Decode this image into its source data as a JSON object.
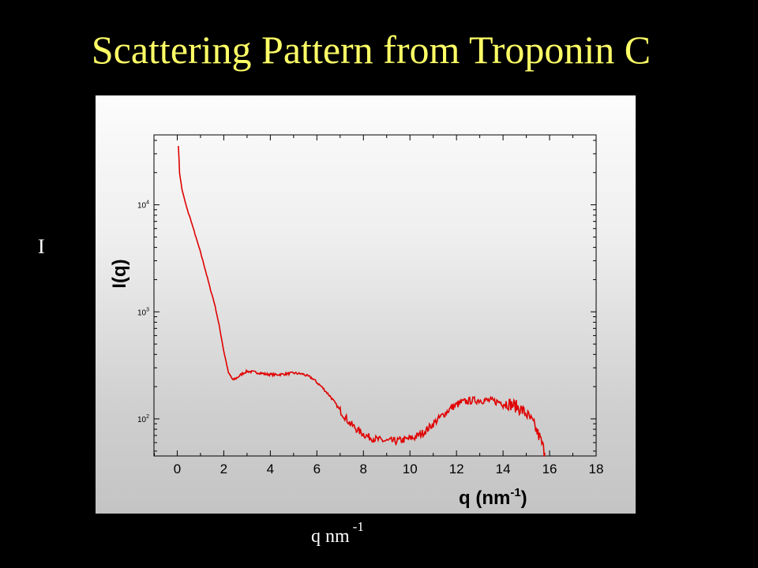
{
  "slide": {
    "title": "Scattering Pattern from Troponin C",
    "side_label": "I",
    "bottom_label_base": "q nm",
    "bottom_label_sup": "-1"
  },
  "colors": {
    "background": "#000000",
    "title": "#ffff66",
    "curve": "#e00000"
  },
  "chart_data": {
    "type": "line",
    "ylabel": "I(q)",
    "xlabel_base": "q (nm",
    "xlabel_sup": "-1",
    "xlabel_close": ")",
    "xlim": [
      -1,
      18
    ],
    "ylim": [
      45,
      45000
    ],
    "yscale": "log",
    "grid": false,
    "x_ticks": [
      "0",
      "2",
      "4",
      "6",
      "8",
      "10",
      "12",
      "14",
      "16",
      "18"
    ],
    "y_ticks": [
      {
        "base": "10",
        "exp": "2",
        "value": 100
      },
      {
        "base": "10",
        "exp": "3",
        "value": 1000
      },
      {
        "base": "10",
        "exp": "4",
        "value": 10000
      }
    ],
    "series": [
      {
        "x": [
          0.05,
          0.1,
          0.2,
          0.3,
          0.4,
          0.6,
          0.8,
          1.0,
          1.2,
          1.4,
          1.6,
          1.8,
          2.0,
          2.2,
          2.4,
          2.6,
          2.8,
          3.0,
          3.2,
          3.5,
          3.8,
          4.2,
          4.6,
          5.0,
          5.4,
          5.8,
          6.2,
          6.6,
          7.0,
          7.4,
          7.8,
          8.2,
          8.6,
          9.0,
          9.4,
          9.8,
          10.2,
          10.6,
          11.0,
          11.4,
          11.8,
          12.2,
          12.6,
          13.0,
          13.4,
          13.8,
          14.2,
          14.6,
          15.0,
          15.3,
          15.6,
          15.8
        ],
        "y": [
          36000,
          20000,
          14000,
          11500,
          9500,
          7000,
          5000,
          3600,
          2500,
          1700,
          1200,
          750,
          430,
          270,
          230,
          245,
          265,
          278,
          275,
          270,
          262,
          258,
          262,
          268,
          262,
          240,
          200,
          160,
          120,
          92,
          77,
          68,
          64,
          62,
          62,
          64,
          67,
          75,
          90,
          108,
          128,
          142,
          148,
          150,
          148,
          144,
          140,
          130,
          112,
          90,
          65,
          48
        ]
      }
    ]
  }
}
